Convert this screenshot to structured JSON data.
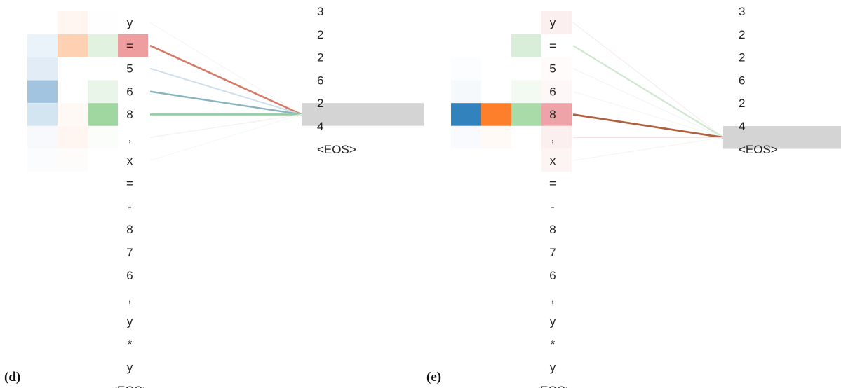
{
  "panels": [
    {
      "label": "(d)",
      "input_tokens": [
        "y",
        "=",
        "5",
        "6",
        "8",
        ",",
        "x",
        "=",
        "-",
        "8",
        "7",
        "6",
        ",",
        "y",
        "*",
        "y",
        "<EOS>"
      ],
      "output_tokens": [
        "3",
        "2",
        "2",
        "6",
        "2",
        "4",
        "<EOS>"
      ],
      "focus_output": 4,
      "heat_cells": [
        {
          "row": 0,
          "col": 1,
          "color": "#fff6f1"
        },
        {
          "row": 0,
          "col": 2,
          "color": "#fdfefd"
        },
        {
          "row": 1,
          "col": 0,
          "color": "#eaf2fa"
        },
        {
          "row": 1,
          "col": 1,
          "color": "#ffd1b3"
        },
        {
          "row": 1,
          "col": 2,
          "color": "#e1f2e1"
        },
        {
          "row": 1,
          "col": 3,
          "color": "#ee9e9f"
        },
        {
          "row": 2,
          "col": 0,
          "color": "#e1ecf6"
        },
        {
          "row": 3,
          "col": 0,
          "color": "#a3c4de"
        },
        {
          "row": 3,
          "col": 2,
          "color": "#e8f5e8"
        },
        {
          "row": 4,
          "col": 0,
          "color": "#d4e5f2"
        },
        {
          "row": 4,
          "col": 1,
          "color": "#fff9f6"
        },
        {
          "row": 4,
          "col": 2,
          "color": "#a0d6a0"
        },
        {
          "row": 5,
          "col": 0,
          "color": "#f7f9fd"
        },
        {
          "row": 5,
          "col": 1,
          "color": "#fff6f2"
        },
        {
          "row": 5,
          "col": 2,
          "color": "#fafdfa"
        },
        {
          "row": 6,
          "col": 0,
          "color": "#fbfcfe"
        },
        {
          "row": 6,
          "col": 1,
          "color": "#fefcfb"
        }
      ],
      "links": [
        {
          "from": 0,
          "color": "#f2ecec",
          "opacity": 0.6,
          "width": 1.2
        },
        {
          "from": 1,
          "color": "#d57a69",
          "opacity": 1.0,
          "width": 2.6
        },
        {
          "from": 2,
          "color": "#c8dbeb",
          "opacity": 0.9,
          "width": 2.0
        },
        {
          "from": 3,
          "color": "#88b4bf",
          "opacity": 1.0,
          "width": 2.4
        },
        {
          "from": 4,
          "color": "#93cba0",
          "opacity": 1.0,
          "width": 2.6
        },
        {
          "from": 5,
          "color": "#f1ece9",
          "opacity": 0.8,
          "width": 1.2
        },
        {
          "from": 6,
          "color": "#f0f3f6",
          "opacity": 0.7,
          "width": 1.2
        }
      ]
    },
    {
      "label": "(e)",
      "input_tokens": [
        "y",
        "=",
        "5",
        "6",
        "8",
        ",",
        "x",
        "=",
        "-",
        "8",
        "7",
        "6",
        ",",
        "y",
        "*",
        "y",
        "<EOS>"
      ],
      "output_tokens": [
        "3",
        "2",
        "2",
        "6",
        "2",
        "4",
        "<EOS>"
      ],
      "focus_output": 5,
      "heat_cells": [
        {
          "row": 0,
          "col": 3,
          "color": "#fcefef"
        },
        {
          "row": 1,
          "col": 2,
          "color": "#d8eed8"
        },
        {
          "row": 2,
          "col": 0,
          "color": "#fcfdfe"
        },
        {
          "row": 2,
          "col": 3,
          "color": "#fffbfb"
        },
        {
          "row": 3,
          "col": 0,
          "color": "#f6f9fc"
        },
        {
          "row": 3,
          "col": 2,
          "color": "#f2faf2"
        },
        {
          "row": 3,
          "col": 3,
          "color": "#fef7f7"
        },
        {
          "row": 4,
          "col": 0,
          "color": "#3182bd"
        },
        {
          "row": 4,
          "col": 1,
          "color": "#fd7f2c"
        },
        {
          "row": 4,
          "col": 2,
          "color": "#a8dba8"
        },
        {
          "row": 4,
          "col": 3,
          "color": "#eea3a8"
        },
        {
          "row": 5,
          "col": 0,
          "color": "#f8fafd"
        },
        {
          "row": 5,
          "col": 1,
          "color": "#fffaf6"
        },
        {
          "row": 5,
          "col": 3,
          "color": "#fcefef"
        },
        {
          "row": 6,
          "col": 3,
          "color": "#fdf4f4"
        }
      ],
      "links": [
        {
          "from": 0,
          "color": "#f4e4e4",
          "opacity": 0.7,
          "width": 1.2
        },
        {
          "from": 1,
          "color": "#cfe7cf",
          "opacity": 1.0,
          "width": 2.2
        },
        {
          "from": 2,
          "color": "#eef3f8",
          "opacity": 0.8,
          "width": 1.2
        },
        {
          "from": 3,
          "color": "#eef6ee",
          "opacity": 0.8,
          "width": 1.2
        },
        {
          "from": 4,
          "color": "#b0603c",
          "opacity": 1.0,
          "width": 2.8
        },
        {
          "from": 5,
          "color": "#f0dcdc",
          "opacity": 0.8,
          "width": 1.4
        },
        {
          "from": 6,
          "color": "#f6eeee",
          "opacity": 0.7,
          "width": 1.2
        }
      ]
    }
  ],
  "colors": {
    "highlight_bar": "#d4d4d4",
    "text": "#222222"
  }
}
